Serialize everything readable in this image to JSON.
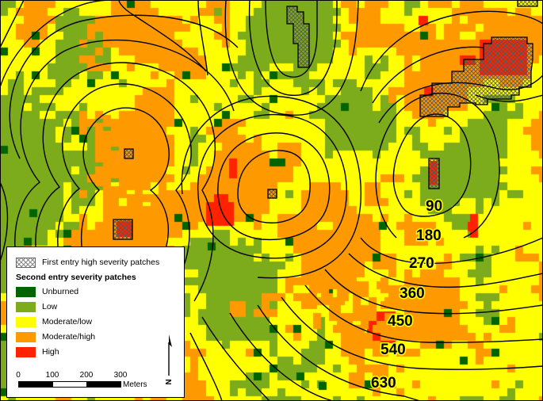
{
  "colors": {
    "unburned": "#006400",
    "low": "#7cac1b",
    "moderate_low": "#ffff00",
    "moderate_high": "#ff9900",
    "high": "#ff2200",
    "hatch": "#777777",
    "contour": "#000000"
  },
  "contour_labels": [
    "90",
    "180",
    "270",
    "360",
    "450",
    "540",
    "630"
  ],
  "legend": {
    "first_entry_label": "First entry high severity patches",
    "second_entry_title": "Second entry severity patches",
    "classes": [
      {
        "key": "unburned",
        "label": "Unburned"
      },
      {
        "key": "low",
        "label": "Low"
      },
      {
        "key": "moderate_low",
        "label": "Moderate/low"
      },
      {
        "key": "moderate_high",
        "label": "Moderate/high"
      },
      {
        "key": "high",
        "label": "High"
      }
    ],
    "scale_ticks": [
      "0",
      "100",
      "200",
      "300"
    ],
    "scale_unit": "Meters",
    "north_letter": "N"
  }
}
